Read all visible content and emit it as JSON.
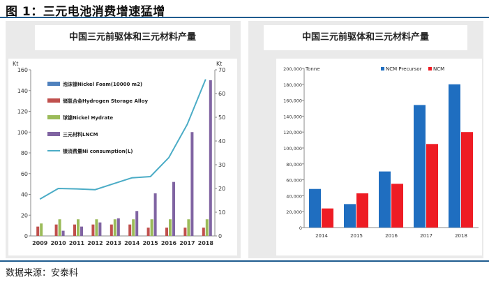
{
  "figure_title": "图 1：三元电池消费增速猛增",
  "source": "数据来源：安泰科",
  "chart_data": [
    {
      "type": "bar",
      "title": "中国三元前驱体和三元材料产量",
      "left_axis_unit": "Kt",
      "right_axis_unit": "Kt",
      "categories": [
        "2009",
        "2010",
        "2011",
        "2012",
        "2013",
        "2014",
        "2015",
        "2016",
        "2017",
        "2018"
      ],
      "ylim_left": [
        0,
        160
      ],
      "yticks_left": [
        0,
        20,
        40,
        60,
        80,
        100,
        120,
        140,
        160
      ],
      "ylim_right": [
        0,
        70
      ],
      "yticks_right": [
        0,
        10,
        20,
        30,
        40,
        50,
        60,
        70
      ],
      "series": [
        {
          "name": "泡沫镍Nickel Foam(10000 m2)",
          "type": "bar",
          "axis": "left",
          "color": "#4f81bd",
          "values": [
            0,
            0,
            0,
            0,
            0,
            0,
            0,
            0,
            0,
            0
          ]
        },
        {
          "name": "储氢合金Hydrogen Storage Alloy",
          "type": "bar",
          "axis": "left",
          "color": "#c0504d",
          "values": [
            9,
            11,
            11,
            11,
            11,
            11,
            8,
            8,
            8,
            8
          ]
        },
        {
          "name": "球镍Nickel Hydrate",
          "type": "bar",
          "axis": "left",
          "color": "#9bbb59",
          "values": [
            12,
            16,
            16,
            16,
            16,
            16,
            16,
            16,
            16,
            16
          ]
        },
        {
          "name": "三元材料LNCM",
          "type": "bar",
          "axis": "left",
          "color": "#8064a2",
          "values": [
            0,
            5,
            9,
            13,
            17,
            24,
            41,
            52,
            100,
            150
          ]
        },
        {
          "name": "镍消费量Ni consumption(L)",
          "type": "line",
          "axis": "right",
          "color": "#4bacc6",
          "values": [
            15.5,
            20,
            19.8,
            19.5,
            22,
            24.5,
            25,
            33,
            47,
            66
          ]
        }
      ]
    },
    {
      "type": "bar",
      "title": "中国三元前驱体和三元材料产量",
      "ylabel": "Tonne",
      "categories": [
        "2014",
        "2015",
        "2016",
        "2017",
        "2018"
      ],
      "ylim": [
        0,
        200000
      ],
      "yticks": [
        "0",
        "20,000",
        "40,000",
        "60,000",
        "80,000",
        "100,000",
        "120,000",
        "140,000",
        "160,000",
        "180,000",
        "200,000"
      ],
      "series": [
        {
          "name": "NCM Precursor",
          "color": "#1f6ec0",
          "values": [
            48500,
            29500,
            70500,
            154000,
            180000
          ]
        },
        {
          "name": "NCM",
          "color": "#ee1c24",
          "values": [
            24000,
            43000,
            55000,
            105000,
            120000
          ]
        }
      ]
    }
  ]
}
